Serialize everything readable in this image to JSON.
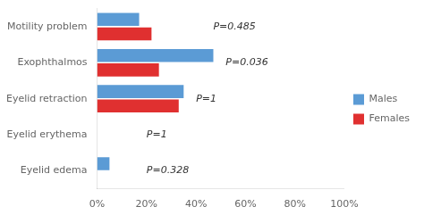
{
  "chart_data": {
    "type": "bar",
    "orientation": "horizontal",
    "categories": [
      "Motility problem",
      "Exophthalmos",
      "Eyelid retraction",
      "Eyelid erythema",
      "Eyelid edema"
    ],
    "series": [
      {
        "name": "Males",
        "color": "#5B9BD5",
        "values": [
          17,
          47,
          35,
          0,
          5
        ]
      },
      {
        "name": "Females",
        "color": "#E03030",
        "values": [
          22,
          25,
          33,
          0,
          0
        ]
      }
    ],
    "xlim": [
      0,
      100
    ],
    "xticks": [
      {
        "value": 0,
        "label": "0%"
      },
      {
        "value": 20,
        "label": "20%"
      },
      {
        "value": 40,
        "label": "40%"
      },
      {
        "value": 60,
        "label": "60%"
      },
      {
        "value": 80,
        "label": "80%"
      },
      {
        "value": 100,
        "label": "100%"
      }
    ],
    "annotations": [
      {
        "text": "P=0.485",
        "category": "Motility problem",
        "x": 47
      },
      {
        "text": "P=0.036",
        "category": "Exophthalmos",
        "x": 52
      },
      {
        "text": "P=1",
        "category": "Eyelid retraction",
        "x": 40
      },
      {
        "text": "P=1",
        "category": "Eyelid erythema",
        "x": 20
      },
      {
        "text": "P=0.328",
        "category": "Eyelid edema",
        "x": 20
      }
    ],
    "legend": "right",
    "grid": false
  }
}
